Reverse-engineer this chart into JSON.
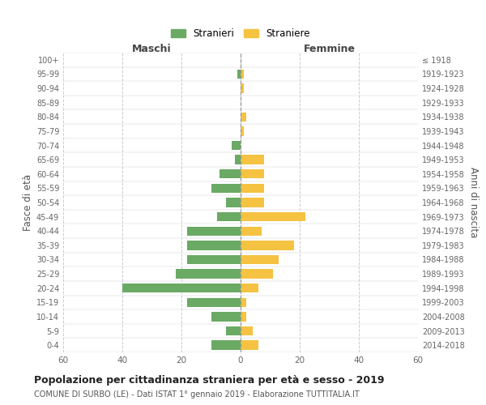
{
  "age_groups": [
    "0-4",
    "5-9",
    "10-14",
    "15-19",
    "20-24",
    "25-29",
    "30-34",
    "35-39",
    "40-44",
    "45-49",
    "50-54",
    "55-59",
    "60-64",
    "65-69",
    "70-74",
    "75-79",
    "80-84",
    "85-89",
    "90-94",
    "95-99",
    "100+"
  ],
  "birth_years": [
    "2014-2018",
    "2009-2013",
    "2004-2008",
    "1999-2003",
    "1994-1998",
    "1989-1993",
    "1984-1988",
    "1979-1983",
    "1974-1978",
    "1969-1973",
    "1964-1968",
    "1959-1963",
    "1954-1958",
    "1949-1953",
    "1944-1948",
    "1939-1943",
    "1934-1938",
    "1929-1933",
    "1924-1928",
    "1919-1923",
    "≤ 1918"
  ],
  "males": [
    10,
    5,
    10,
    18,
    40,
    22,
    18,
    18,
    18,
    8,
    5,
    10,
    7,
    2,
    3,
    0,
    0,
    0,
    0,
    1,
    0
  ],
  "females": [
    6,
    4,
    2,
    2,
    6,
    11,
    13,
    18,
    7,
    22,
    8,
    8,
    8,
    8,
    0,
    1,
    2,
    0,
    1,
    1,
    0
  ],
  "male_color": "#6aaa64",
  "female_color": "#f5c242",
  "background_color": "#ffffff",
  "grid_color": "#cccccc",
  "title": "Popolazione per cittadinanza straniera per età e sesso - 2019",
  "subtitle": "COMUNE DI SURBO (LE) - Dati ISTAT 1° gennaio 2019 - Elaborazione TUTTITALIA.IT",
  "xlabel_left": "Maschi",
  "xlabel_right": "Femmine",
  "ylabel_left": "Fasce di età",
  "ylabel_right": "Anni di nascita",
  "legend_male": "Stranieri",
  "legend_female": "Straniere",
  "xlim": 60
}
